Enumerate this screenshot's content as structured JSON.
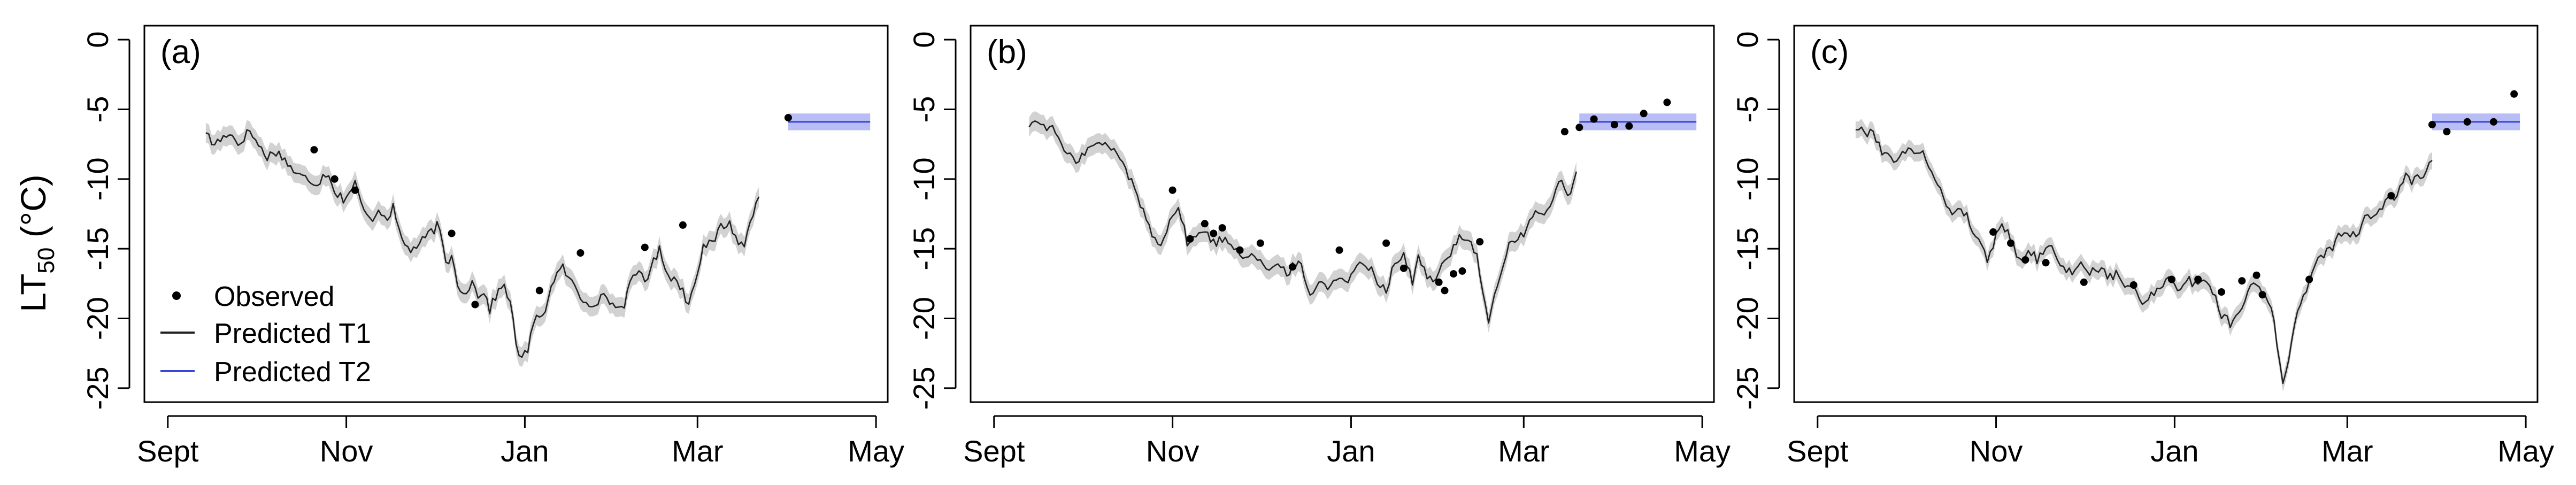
{
  "figure": {
    "ylabel_main": "LT",
    "ylabel_sub": "50",
    "ylabel_unit": " (°C)",
    "legend": {
      "observed": "Observed",
      "t1": "Predicted T1",
      "t2": "Predicted T2"
    },
    "colors": {
      "t1_line": "#222222",
      "t1_band": "#d2d2d2",
      "t2_line": "#3a46d8",
      "t2_band": "#b9bdf5",
      "points": "#000000"
    }
  },
  "chart_data": [
    {
      "type": "line",
      "panel_label": "(a)",
      "x_unit": "days since Sept 1",
      "xticks": [
        {
          "label": "Sept",
          "day": 0
        },
        {
          "label": "Nov",
          "day": 61
        },
        {
          "label": "Jan",
          "day": 122
        },
        {
          "label": "Mar",
          "day": 181
        },
        {
          "label": "May",
          "day": 242
        }
      ],
      "yticks": [
        0,
        -5,
        -10,
        -15,
        -20,
        -25
      ],
      "ylim": [
        -26,
        1
      ],
      "xlim": [
        -8,
        246
      ],
      "t1": {
        "start_day": 13,
        "end_day": 202,
        "band_halfwidth": 0.7,
        "keypoints": [
          [
            13,
            -6.5
          ],
          [
            15,
            -7.5
          ],
          [
            18,
            -7.2
          ],
          [
            21,
            -6.6
          ],
          [
            24,
            -7.5
          ],
          [
            28,
            -6.5
          ],
          [
            31,
            -7.6
          ],
          [
            34,
            -8.4
          ],
          [
            37,
            -8.0
          ],
          [
            40,
            -8.6
          ],
          [
            44,
            -9.7
          ],
          [
            48,
            -10.0
          ],
          [
            51,
            -10.3
          ],
          [
            53,
            -9.8
          ],
          [
            55,
            -9.5
          ],
          [
            57,
            -10.9
          ],
          [
            60,
            -11.4
          ],
          [
            62,
            -11.0
          ],
          [
            64,
            -10.3
          ],
          [
            66,
            -11.8
          ],
          [
            69,
            -13.0
          ],
          [
            72,
            -12.2
          ],
          [
            75,
            -12.7
          ],
          [
            77,
            -12.1
          ],
          [
            80,
            -14.4
          ],
          [
            83,
            -15.1
          ],
          [
            86,
            -14.7
          ],
          [
            89,
            -14.0
          ],
          [
            92,
            -13.4
          ],
          [
            93,
            -13.9
          ],
          [
            95,
            -16.0
          ],
          [
            97,
            -15.6
          ],
          [
            99,
            -17.4
          ],
          [
            101,
            -18.2
          ],
          [
            104,
            -17.4
          ],
          [
            106,
            -18.3
          ],
          [
            108,
            -18.0
          ],
          [
            110,
            -19.4
          ],
          [
            112,
            -18.4
          ],
          [
            115,
            -17.6
          ],
          [
            117,
            -18.8
          ],
          [
            119,
            -21.8
          ],
          [
            121,
            -23.0
          ],
          [
            123,
            -22.2
          ],
          [
            125,
            -20.4
          ],
          [
            127,
            -19.8
          ],
          [
            129,
            -19.3
          ],
          [
            132,
            -17.1
          ],
          [
            135,
            -16.4
          ],
          [
            138,
            -17.4
          ],
          [
            141,
            -18.5
          ],
          [
            144,
            -18.9
          ],
          [
            147,
            -18.7
          ],
          [
            150,
            -18.4
          ],
          [
            153,
            -19.3
          ],
          [
            156,
            -18.9
          ],
          [
            158,
            -17.6
          ],
          [
            161,
            -16.5
          ],
          [
            163,
            -17.3
          ],
          [
            165,
            -16.4
          ],
          [
            168,
            -15.1
          ],
          [
            171,
            -16.8
          ],
          [
            175,
            -17.6
          ],
          [
            178,
            -19.0
          ],
          [
            180,
            -17.3
          ],
          [
            183,
            -14.8
          ],
          [
            186,
            -14.7
          ],
          [
            189,
            -13.4
          ],
          [
            192,
            -13.2
          ],
          [
            195,
            -14.5
          ],
          [
            197,
            -14.9
          ],
          [
            199,
            -13.0
          ],
          [
            201,
            -11.6
          ],
          [
            203,
            -10.8
          ],
          [
            205,
            -10.0
          ],
          [
            207,
            -9.2
          ],
          [
            209,
            -9.5
          ],
          [
            211,
            -8.4
          ]
        ]
      },
      "t2": {
        "x": [
          212,
          240
        ],
        "y": -5.9,
        "band": [
          -6.5,
          -5.3
        ]
      },
      "observed": [
        [
          50,
          -7.9
        ],
        [
          57,
          -10.0
        ],
        [
          64,
          -10.8
        ],
        [
          97,
          -13.9
        ],
        [
          105,
          -19.0
        ],
        [
          127,
          -18.0
        ],
        [
          141,
          -15.3
        ],
        [
          163,
          -14.9
        ],
        [
          176,
          -13.3
        ],
        [
          212,
          -5.6
        ]
      ]
    },
    {
      "type": "line",
      "panel_label": "(b)",
      "x_unit": "days since Sept 1",
      "xticks": [
        {
          "label": "Sept",
          "day": 0
        },
        {
          "label": "Nov",
          "day": 61
        },
        {
          "label": "Jan",
          "day": 122
        },
        {
          "label": "Mar",
          "day": 181
        },
        {
          "label": "May",
          "day": 242
        }
      ],
      "yticks": [
        0,
        -5,
        -10,
        -15,
        -20,
        -25
      ],
      "ylim": [
        -26,
        1
      ],
      "xlim": [
        -8,
        246
      ],
      "t1": {
        "start_day": 12,
        "end_day": 199,
        "band_halfwidth": 0.7,
        "keypoints": [
          [
            12,
            -6.1
          ],
          [
            15,
            -5.9
          ],
          [
            18,
            -6.2
          ],
          [
            21,
            -6.6
          ],
          [
            24,
            -8.0
          ],
          [
            27,
            -8.7
          ],
          [
            30,
            -8.3
          ],
          [
            33,
            -7.7
          ],
          [
            36,
            -7.5
          ],
          [
            39,
            -7.6
          ],
          [
            42,
            -8.2
          ],
          [
            45,
            -9.2
          ],
          [
            48,
            -10.8
          ],
          [
            51,
            -12.2
          ],
          [
            54,
            -14.1
          ],
          [
            57,
            -14.5
          ],
          [
            60,
            -13.0
          ],
          [
            63,
            -12.0
          ],
          [
            66,
            -14.5
          ],
          [
            69,
            -14.2
          ],
          [
            72,
            -13.6
          ],
          [
            75,
            -14.6
          ],
          [
            78,
            -14.3
          ],
          [
            81,
            -14.6
          ],
          [
            85,
            -15.5
          ],
          [
            88,
            -15.2
          ],
          [
            91,
            -15.9
          ],
          [
            94,
            -16.5
          ],
          [
            97,
            -16.3
          ],
          [
            100,
            -16.8
          ],
          [
            103,
            -16.0
          ],
          [
            105,
            -16.3
          ],
          [
            108,
            -18.5
          ],
          [
            111,
            -17.2
          ],
          [
            114,
            -17.8
          ],
          [
            117,
            -16.9
          ],
          [
            120,
            -17.5
          ],
          [
            122,
            -17.1
          ],
          [
            125,
            -15.7
          ],
          [
            128,
            -16.2
          ],
          [
            131,
            -17.3
          ],
          [
            134,
            -17.9
          ],
          [
            137,
            -16.0
          ],
          [
            140,
            -15.4
          ],
          [
            143,
            -17.5
          ],
          [
            145,
            -15.5
          ],
          [
            147,
            -16.5
          ],
          [
            150,
            -17.6
          ],
          [
            153,
            -16.3
          ],
          [
            156,
            -15.3
          ],
          [
            159,
            -14.0
          ],
          [
            162,
            -14.3
          ],
          [
            165,
            -15.5
          ],
          [
            167,
            -17.9
          ],
          [
            169,
            -20.2
          ],
          [
            171,
            -18.6
          ],
          [
            173,
            -16.8
          ],
          [
            176,
            -14.8
          ],
          [
            179,
            -14.2
          ],
          [
            182,
            -13.7
          ],
          [
            185,
            -12.2
          ],
          [
            188,
            -12.9
          ],
          [
            191,
            -11.3
          ],
          [
            193,
            -9.9
          ],
          [
            195,
            -10.5
          ],
          [
            197,
            -11.3
          ],
          [
            199,
            -9.5
          ]
        ]
      },
      "t2": {
        "x": [
          200,
          240
        ],
        "y": -5.9,
        "band": [
          -6.5,
          -5.3
        ]
      },
      "observed": [
        [
          61,
          -10.8
        ],
        [
          67,
          -14.3
        ],
        [
          72,
          -13.2
        ],
        [
          75,
          -13.9
        ],
        [
          78,
          -13.5
        ],
        [
          84,
          -15.1
        ],
        [
          91,
          -14.6
        ],
        [
          102,
          -16.3
        ],
        [
          118,
          -15.1
        ],
        [
          134,
          -14.6
        ],
        [
          140,
          -16.4
        ],
        [
          152,
          -17.4
        ],
        [
          154,
          -18.0
        ],
        [
          157,
          -16.8
        ],
        [
          160,
          -16.6
        ],
        [
          166,
          -14.5
        ],
        [
          195,
          -6.6
        ],
        [
          200,
          -6.3
        ],
        [
          205,
          -5.7
        ],
        [
          212,
          -6.1
        ],
        [
          217,
          -6.2
        ],
        [
          222,
          -5.3
        ],
        [
          230,
          -4.5
        ]
      ]
    },
    {
      "type": "line",
      "panel_label": "(c)",
      "x_unit": "days since Sept 1",
      "xticks": [
        {
          "label": "Sept",
          "day": 0
        },
        {
          "label": "Nov",
          "day": 61
        },
        {
          "label": "Jan",
          "day": 122
        },
        {
          "label": "Mar",
          "day": 181
        },
        {
          "label": "May",
          "day": 242
        }
      ],
      "yticks": [
        0,
        -5,
        -10,
        -15,
        -20,
        -25
      ],
      "ylim": [
        -26,
        1
      ],
      "xlim": [
        -8,
        246
      ],
      "t1": {
        "start_day": 13,
        "end_day": 210,
        "band_halfwidth": 0.6,
        "keypoints": [
          [
            13,
            -6.3
          ],
          [
            16,
            -6.7
          ],
          [
            19,
            -6.5
          ],
          [
            22,
            -8.0
          ],
          [
            25,
            -8.6
          ],
          [
            28,
            -8.3
          ],
          [
            31,
            -8.1
          ],
          [
            34,
            -7.8
          ],
          [
            37,
            -8.5
          ],
          [
            40,
            -9.8
          ],
          [
            43,
            -11.5
          ],
          [
            46,
            -12.4
          ],
          [
            49,
            -12.0
          ],
          [
            52,
            -13.1
          ],
          [
            55,
            -14.5
          ],
          [
            58,
            -15.7
          ],
          [
            61,
            -14.1
          ],
          [
            63,
            -13.1
          ],
          [
            66,
            -14.3
          ],
          [
            69,
            -15.8
          ],
          [
            72,
            -15.1
          ],
          [
            75,
            -15.8
          ],
          [
            78,
            -14.8
          ],
          [
            81,
            -15.2
          ],
          [
            84,
            -16.3
          ],
          [
            87,
            -16.8
          ],
          [
            90,
            -16.2
          ],
          [
            93,
            -16.6
          ],
          [
            96,
            -16.4
          ],
          [
            99,
            -17.0
          ],
          [
            102,
            -16.9
          ],
          [
            105,
            -17.5
          ],
          [
            108,
            -17.9
          ],
          [
            111,
            -19.0
          ],
          [
            114,
            -18.2
          ],
          [
            117,
            -17.7
          ],
          [
            120,
            -16.9
          ],
          [
            123,
            -18.1
          ],
          [
            126,
            -17.2
          ],
          [
            129,
            -17.6
          ],
          [
            132,
            -17.0
          ],
          [
            135,
            -18.1
          ],
          [
            138,
            -19.7
          ],
          [
            141,
            -20.3
          ],
          [
            144,
            -19.6
          ],
          [
            147,
            -18.0
          ],
          [
            149,
            -17.3
          ],
          [
            151,
            -17.8
          ],
          [
            153,
            -18.4
          ],
          [
            155,
            -18.9
          ],
          [
            157,
            -22.0
          ],
          [
            159,
            -24.5
          ],
          [
            161,
            -23.3
          ],
          [
            163,
            -20.3
          ],
          [
            165,
            -18.7
          ],
          [
            167,
            -17.9
          ],
          [
            170,
            -16.2
          ],
          [
            173,
            -15.5
          ],
          [
            176,
            -14.8
          ],
          [
            179,
            -13.8
          ],
          [
            182,
            -13.9
          ],
          [
            185,
            -14.2
          ],
          [
            187,
            -12.8
          ],
          [
            190,
            -12.5
          ],
          [
            193,
            -12.2
          ],
          [
            195,
            -11.0
          ],
          [
            197,
            -11.6
          ],
          [
            199,
            -10.2
          ],
          [
            201,
            -9.8
          ],
          [
            203,
            -10.4
          ],
          [
            205,
            -9.4
          ],
          [
            207,
            -10.1
          ],
          [
            209,
            -8.7
          ]
        ]
      },
      "t2": {
        "x": [
          210,
          240
        ],
        "y": -5.9,
        "band": [
          -6.5,
          -5.3
        ]
      },
      "observed": [
        [
          60,
          -13.8
        ],
        [
          66,
          -14.6
        ],
        [
          71,
          -15.8
        ],
        [
          78,
          -16.0
        ],
        [
          91,
          -17.4
        ],
        [
          108,
          -17.6
        ],
        [
          121,
          -17.2
        ],
        [
          130,
          -17.2
        ],
        [
          138,
          -18.1
        ],
        [
          145,
          -17.3
        ],
        [
          150,
          -16.9
        ],
        [
          152,
          -18.3
        ],
        [
          168,
          -17.2
        ],
        [
          196,
          -11.2
        ],
        [
          210,
          -6.1
        ],
        [
          215,
          -6.6
        ],
        [
          222,
          -5.9
        ],
        [
          231,
          -5.9
        ],
        [
          238,
          -3.9
        ]
      ]
    }
  ]
}
